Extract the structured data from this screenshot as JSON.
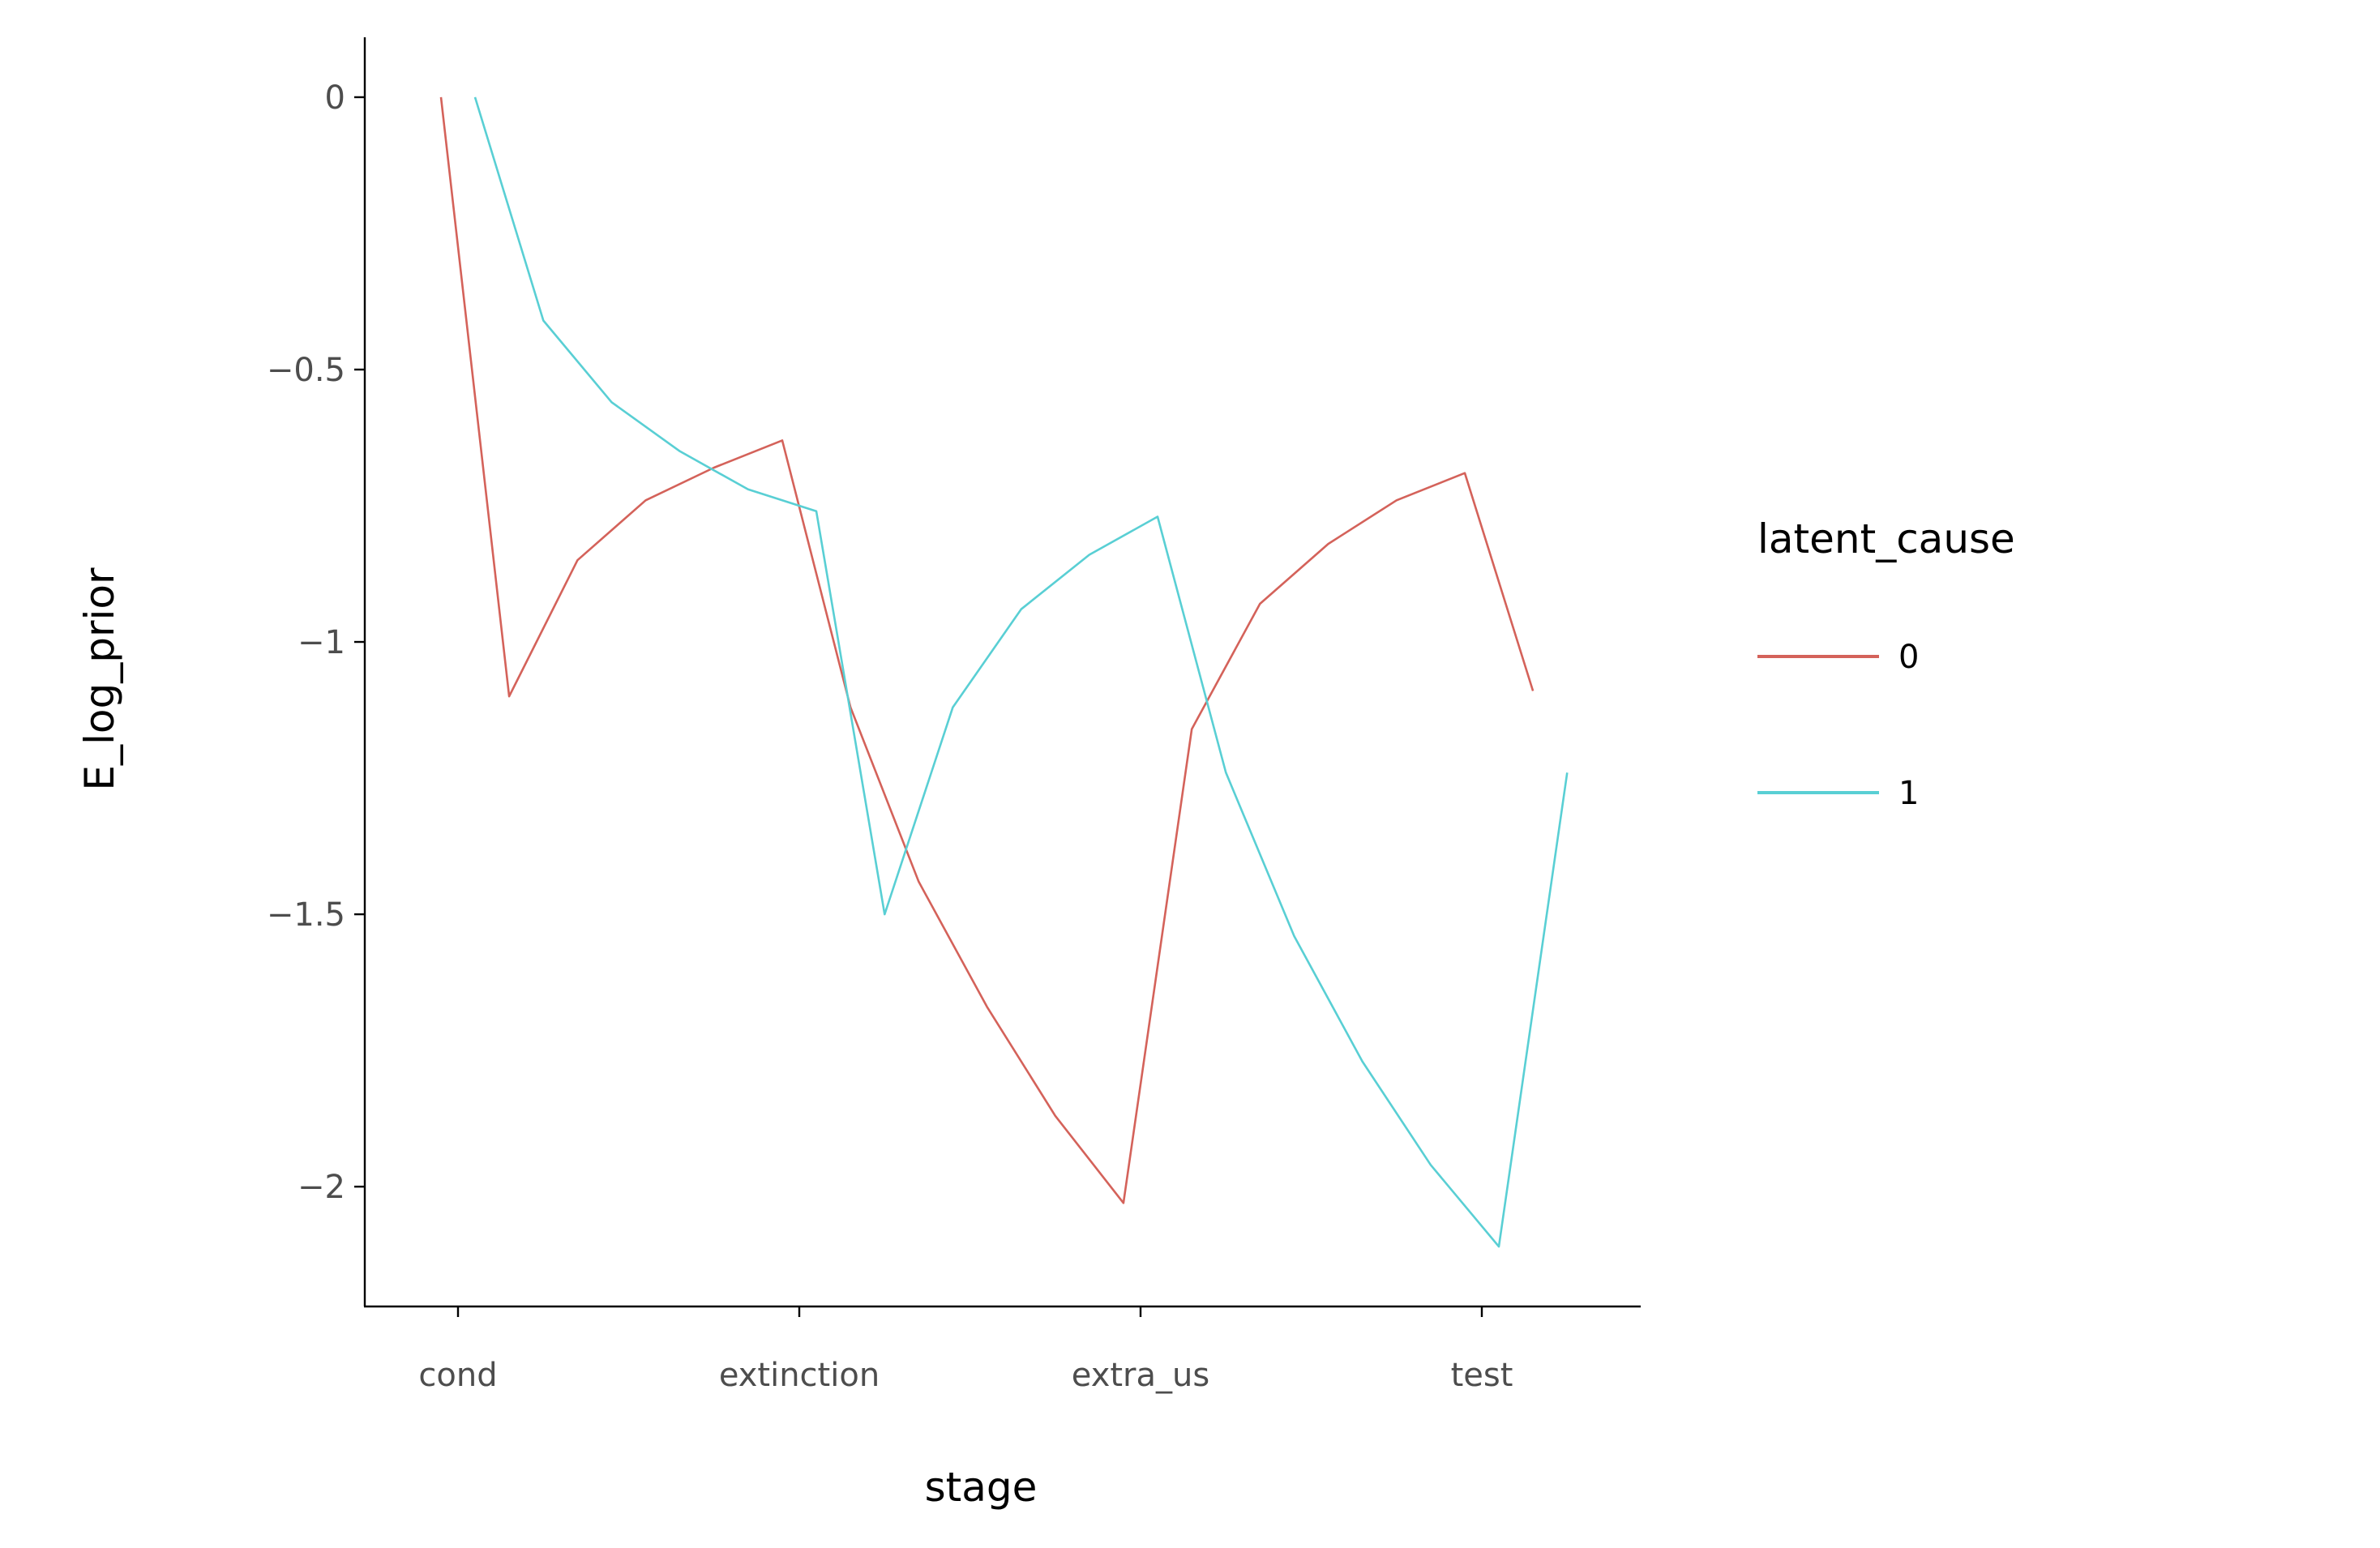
{
  "chart_data": {
    "type": "line",
    "xlabel": "stage",
    "ylabel": "E_log_prior",
    "categories": [
      "cond",
      "extinction",
      "extra_us",
      "test"
    ],
    "ylim": [
      -2.22,
      0.11
    ],
    "yticks": [
      0,
      -0.5,
      -1,
      -1.5,
      -2
    ],
    "ytick_labels": [
      "0",
      "−0.5",
      "−1",
      "−1.5",
      "−2"
    ],
    "grid": false,
    "legend": {
      "title": "latent_cause",
      "placement": "right"
    },
    "series": [
      {
        "name": "0",
        "color": "#d4625a",
        "points": [
          {
            "x": -0.05,
            "y": 0.0
          },
          {
            "x": 0.15,
            "y": -1.1
          },
          {
            "x": 0.35,
            "y": -0.85
          },
          {
            "x": 0.55,
            "y": -0.74
          },
          {
            "x": 0.75,
            "y": -0.68
          },
          {
            "x": 0.95,
            "y": -0.63
          },
          {
            "x": 1.15,
            "y": -1.12
          },
          {
            "x": 1.35,
            "y": -1.44
          },
          {
            "x": 1.55,
            "y": -1.67
          },
          {
            "x": 1.75,
            "y": -1.87
          },
          {
            "x": 1.95,
            "y": -2.03
          },
          {
            "x": 2.15,
            "y": -1.16
          },
          {
            "x": 2.35,
            "y": -0.93
          },
          {
            "x": 2.55,
            "y": -0.82
          },
          {
            "x": 2.75,
            "y": -0.74
          },
          {
            "x": 2.95,
            "y": -0.69
          },
          {
            "x": 3.15,
            "y": -1.09
          }
        ]
      },
      {
        "name": "1",
        "color": "#59cfd4",
        "points": [
          {
            "x": 0.05,
            "y": 0.0
          },
          {
            "x": 0.25,
            "y": -0.41
          },
          {
            "x": 0.45,
            "y": -0.56
          },
          {
            "x": 0.65,
            "y": -0.65
          },
          {
            "x": 0.85,
            "y": -0.72
          },
          {
            "x": 1.05,
            "y": -0.76
          },
          {
            "x": 1.25,
            "y": -1.5
          },
          {
            "x": 1.45,
            "y": -1.12
          },
          {
            "x": 1.65,
            "y": -0.94
          },
          {
            "x": 1.85,
            "y": -0.84
          },
          {
            "x": 2.05,
            "y": -0.77
          },
          {
            "x": 2.25,
            "y": -1.24
          },
          {
            "x": 2.45,
            "y": -1.54
          },
          {
            "x": 2.65,
            "y": -1.77
          },
          {
            "x": 2.85,
            "y": -1.96
          },
          {
            "x": 3.05,
            "y": -2.11
          },
          {
            "x": 3.25,
            "y": -1.24
          }
        ]
      }
    ]
  }
}
